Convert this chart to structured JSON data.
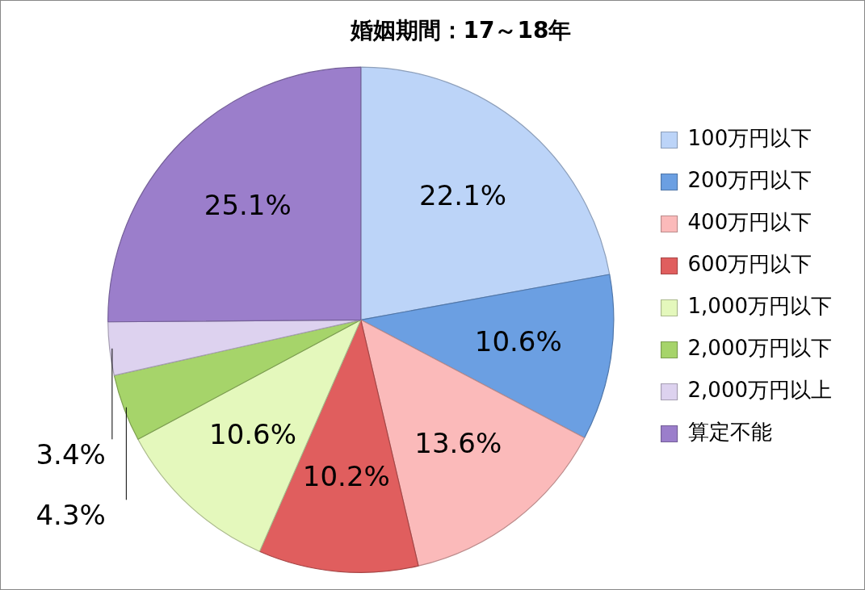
{
  "chart_data": {
    "type": "pie",
    "title": "婚姻期間：17～18年",
    "categories": [
      "100万円以下",
      "200万円以下",
      "400万円以下",
      "600万円以下",
      "1,000万円以下",
      "2,000万円以下",
      "2,000万円以上",
      "算定不能"
    ],
    "values": [
      22.1,
      10.6,
      13.6,
      10.2,
      10.6,
      4.3,
      3.4,
      25.1
    ],
    "value_labels": [
      "22.1%",
      "10.6%",
      "13.6%",
      "10.2%",
      "10.6%",
      "4.3%",
      "3.4%",
      "25.1%"
    ],
    "colors": [
      "#bcd4f8",
      "#6b9fe2",
      "#fbbaba",
      "#e05e5e",
      "#e4f8bc",
      "#a6d46a",
      "#ddd2ef",
      "#9b7ecb"
    ],
    "legend": "right"
  }
}
